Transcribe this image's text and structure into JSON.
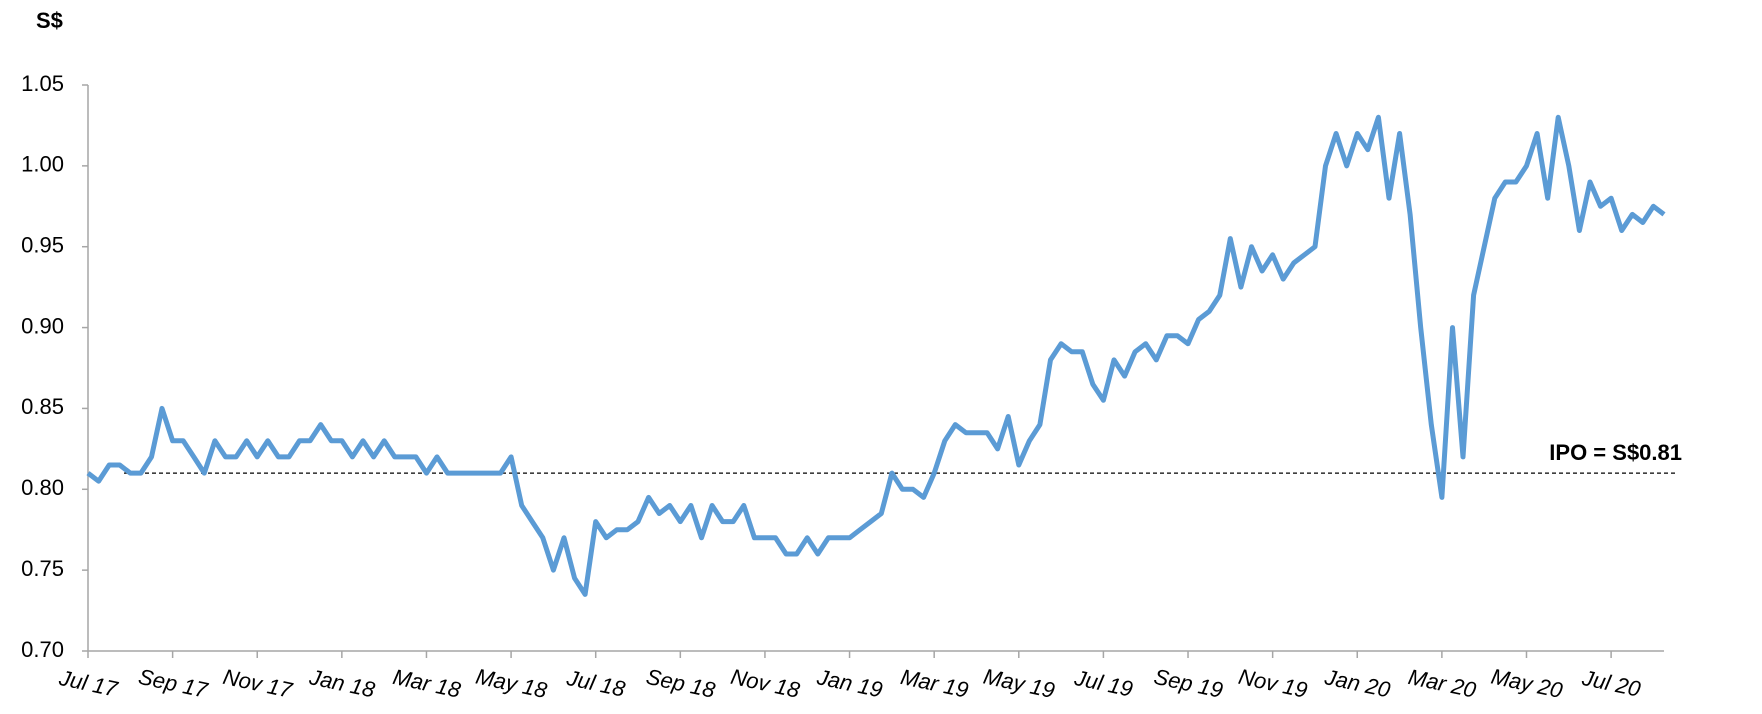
{
  "chart_data": {
    "type": "line",
    "y_label": "S$",
    "categories": [
      "Jul 17",
      null,
      null,
      null,
      null,
      null,
      null,
      null,
      "Sep 17",
      null,
      null,
      null,
      null,
      null,
      null,
      null,
      "Nov 17",
      null,
      null,
      null,
      null,
      null,
      null,
      null,
      "Jan 18",
      null,
      null,
      null,
      null,
      null,
      null,
      null,
      "Mar 18",
      null,
      null,
      null,
      null,
      null,
      null,
      null,
      "May 18",
      null,
      null,
      null,
      null,
      null,
      null,
      null,
      "Jul 18",
      null,
      null,
      null,
      null,
      null,
      null,
      null,
      "Sep 18",
      null,
      null,
      null,
      null,
      null,
      null,
      null,
      "Nov 18",
      null,
      null,
      null,
      null,
      null,
      null,
      null,
      "Jan 19",
      null,
      null,
      null,
      null,
      null,
      null,
      null,
      "Mar 19",
      null,
      null,
      null,
      null,
      null,
      null,
      null,
      "May 19",
      null,
      null,
      null,
      null,
      null,
      null,
      null,
      "Jul 19",
      null,
      null,
      null,
      null,
      null,
      null,
      null,
      "Sep 19",
      null,
      null,
      null,
      null,
      null,
      null,
      null,
      "Nov 19",
      null,
      null,
      null,
      null,
      null,
      null,
      null,
      "Jan 20",
      null,
      null,
      null,
      null,
      null,
      null,
      null,
      "Mar 20",
      null,
      null,
      null,
      null,
      null,
      null,
      null,
      "May 20",
      null,
      null,
      null,
      null,
      null,
      null,
      null,
      "Jul 20",
      null,
      null,
      null,
      null,
      null
    ],
    "series": [
      {
        "color": "#5b9bd5",
        "values": [
          0.81,
          0.805,
          0.815,
          0.815,
          0.81,
          0.81,
          0.82,
          0.85,
          0.83,
          0.83,
          0.82,
          0.81,
          0.83,
          0.82,
          0.82,
          0.83,
          0.82,
          0.83,
          0.82,
          0.82,
          0.83,
          0.83,
          0.84,
          0.83,
          0.83,
          0.82,
          0.83,
          0.82,
          0.83,
          0.82,
          0.82,
          0.82,
          0.81,
          0.82,
          0.81,
          0.81,
          0.81,
          0.81,
          0.81,
          0.81,
          0.82,
          0.79,
          0.78,
          0.77,
          0.75,
          0.77,
          0.745,
          0.735,
          0.78,
          0.77,
          0.775,
          0.775,
          0.78,
          0.795,
          0.785,
          0.79,
          0.78,
          0.79,
          0.77,
          0.79,
          0.78,
          0.78,
          0.79,
          0.77,
          0.77,
          0.77,
          0.76,
          0.76,
          0.77,
          0.76,
          0.77,
          0.77,
          0.77,
          0.775,
          0.78,
          0.785,
          0.81,
          0.8,
          0.8,
          0.795,
          0.81,
          0.83,
          0.84,
          0.835,
          0.835,
          0.835,
          0.825,
          0.845,
          0.815,
          0.83,
          0.84,
          0.88,
          0.89,
          0.885,
          0.885,
          0.865,
          0.855,
          0.88,
          0.87,
          0.885,
          0.89,
          0.88,
          0.895,
          0.895,
          0.89,
          0.905,
          0.91,
          0.92,
          0.955,
          0.925,
          0.95,
          0.935,
          0.945,
          0.93,
          0.94,
          0.945,
          0.95,
          1.0,
          1.02,
          1.0,
          1.02,
          1.01,
          1.03,
          0.98,
          1.02,
          0.97,
          0.9,
          0.84,
          0.795,
          0.9,
          0.82,
          0.92,
          0.95,
          0.98,
          0.99,
          0.99,
          1.0,
          1.02,
          0.98,
          1.03,
          1.0,
          0.96,
          0.99,
          0.975,
          0.98,
          0.96,
          0.97,
          0.965,
          0.975,
          0.97
        ]
      }
    ],
    "ylim": [
      0.7,
      1.05
    ],
    "yticks": [
      {
        "value": 0.7,
        "label": "0.70"
      },
      0.75,
      {
        "value": 0.8,
        "label": "0.80"
      },
      0.85,
      {
        "value": 0.9,
        "label": "0.90"
      },
      0.95,
      {
        "value": 1.0,
        "label": "1.00"
      },
      1.05
    ],
    "reference_line": {
      "value": 0.81,
      "label": "IPO = S$0.81"
    },
    "grid": false
  }
}
